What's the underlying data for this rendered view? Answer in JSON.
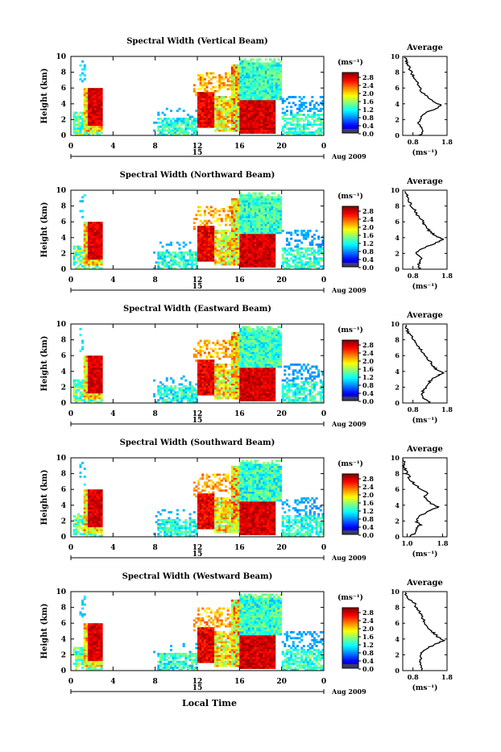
{
  "chart_data": [
    {
      "type": "heatmap",
      "title": "Spectral Width (Vertical Beam)",
      "ylabel": "Height (km)",
      "xlim": [
        0,
        24
      ],
      "ylim": [
        0,
        10
      ],
      "x_ticks": [
        "0",
        "4",
        "8",
        "12",
        "16",
        "20",
        "0"
      ],
      "y_ticks": [
        "0",
        "2",
        "4",
        "6",
        "8",
        "10"
      ],
      "day_label": "15",
      "date_label": "Aug 2009",
      "colorbar": {
        "unit": "(ms⁻¹)",
        "ticks": [
          "0.0",
          "0.4",
          "0.8",
          "1.2",
          "1.6",
          "2.0",
          "2.4",
          "2.8"
        ],
        "range": [
          0,
          3.0
        ]
      },
      "average": {
        "title": "Average",
        "xlim": [
          0.5,
          1.8
        ],
        "x_ticks": [
          "0.8",
          "1.8"
        ],
        "xlabel": "(ms⁻¹)",
        "y_ticks": [
          "0",
          "2",
          "4",
          "6",
          "8",
          "10"
        ],
        "profile": [
          [
            0,
            1.0
          ],
          [
            0.5,
            1.1
          ],
          [
            1,
            1.05
          ],
          [
            1.5,
            0.95
          ],
          [
            2,
            1.0
          ],
          [
            2.5,
            1.05
          ],
          [
            3,
            1.25
          ],
          [
            3.5,
            1.5
          ],
          [
            3.8,
            1.65
          ],
          [
            4.2,
            1.45
          ],
          [
            4.6,
            1.3
          ],
          [
            5,
            1.2
          ],
          [
            5.5,
            1.05
          ],
          [
            6,
            1.0
          ],
          [
            6.5,
            0.95
          ],
          [
            7,
            0.9
          ],
          [
            7.5,
            0.8
          ],
          [
            8,
            0.75
          ],
          [
            8.5,
            0.7
          ],
          [
            9,
            0.65
          ],
          [
            9.5,
            0.6
          ],
          [
            10,
            0.55
          ]
        ]
      }
    },
    {
      "type": "heatmap",
      "title": "Spectral Width (Northward Beam)",
      "ylabel": "Height (km)",
      "xlim": [
        0,
        24
      ],
      "ylim": [
        0,
        10
      ],
      "x_ticks": [
        "0",
        "4",
        "8",
        "12",
        "16",
        "20",
        "0"
      ],
      "y_ticks": [
        "0",
        "2",
        "4",
        "6",
        "8",
        "10"
      ],
      "day_label": "15",
      "date_label": "Aug 2009",
      "colorbar": {
        "unit": "(ms⁻¹)",
        "ticks": [
          "0.0",
          "0.4",
          "0.8",
          "1.2",
          "1.6",
          "2.0",
          "2.4",
          "2.8"
        ],
        "range": [
          0,
          3.0
        ]
      },
      "average": {
        "title": "Average",
        "xlim": [
          0.5,
          1.8
        ],
        "x_ticks": [
          "0.8",
          "1.8"
        ],
        "xlabel": "(ms⁻¹)",
        "y_ticks": [
          "0",
          "2",
          "4",
          "6",
          "8",
          "10"
        ],
        "profile": [
          [
            0,
            1.0
          ],
          [
            0.5,
            0.95
          ],
          [
            1,
            1.0
          ],
          [
            1.5,
            1.05
          ],
          [
            2,
            0.9
          ],
          [
            2.5,
            1.0
          ],
          [
            3,
            1.3
          ],
          [
            3.5,
            1.55
          ],
          [
            3.8,
            1.7
          ],
          [
            4.2,
            1.45
          ],
          [
            4.6,
            1.35
          ],
          [
            5,
            1.25
          ],
          [
            5.5,
            1.15
          ],
          [
            6,
            1.1
          ],
          [
            6.5,
            1.0
          ],
          [
            7,
            0.9
          ],
          [
            7.5,
            0.85
          ],
          [
            8,
            0.75
          ],
          [
            8.5,
            0.7
          ],
          [
            9,
            0.65
          ],
          [
            9.5,
            0.6
          ],
          [
            10,
            0.55
          ]
        ]
      }
    },
    {
      "type": "heatmap",
      "title": "Spectral Width (Eastward Beam)",
      "ylabel": "Height (km)",
      "xlim": [
        0,
        24
      ],
      "ylim": [
        0,
        10
      ],
      "x_ticks": [
        "0",
        "4",
        "8",
        "12",
        "16",
        "20",
        "0"
      ],
      "y_ticks": [
        "0",
        "2",
        "4",
        "6",
        "8",
        "10"
      ],
      "day_label": "15",
      "date_label": "Aug 2009",
      "colorbar": {
        "unit": "(ms⁻¹)",
        "ticks": [
          "0.0",
          "0.4",
          "0.8",
          "1.2",
          "1.6",
          "2.0",
          "2.4",
          "2.8"
        ],
        "range": [
          0,
          3.0
        ]
      },
      "average": {
        "title": "Average",
        "xlim": [
          0.5,
          1.8
        ],
        "x_ticks": [
          "0.8",
          "1.8"
        ],
        "xlabel": "(ms⁻¹)",
        "y_ticks": [
          "0",
          "2",
          "4",
          "6",
          "8",
          "10"
        ],
        "profile": [
          [
            0,
            1.3
          ],
          [
            0.5,
            1.15
          ],
          [
            1,
            1.05
          ],
          [
            1.5,
            1.1
          ],
          [
            2,
            1.2
          ],
          [
            2.5,
            1.25
          ],
          [
            3,
            1.35
          ],
          [
            3.5,
            1.55
          ],
          [
            3.8,
            1.7
          ],
          [
            4.2,
            1.5
          ],
          [
            4.6,
            1.4
          ],
          [
            5,
            1.35
          ],
          [
            5.5,
            1.25
          ],
          [
            6,
            1.15
          ],
          [
            6.5,
            1.05
          ],
          [
            7,
            1.0
          ],
          [
            7.5,
            0.9
          ],
          [
            8,
            0.8
          ],
          [
            8.5,
            0.75
          ],
          [
            9,
            0.65
          ],
          [
            9.5,
            0.6
          ],
          [
            10,
            0.55
          ]
        ]
      }
    },
    {
      "type": "heatmap",
      "title": "Spectral Width (Southward Beam)",
      "ylabel": "Height (km)",
      "xlim": [
        0,
        24
      ],
      "ylim": [
        0,
        10
      ],
      "x_ticks": [
        "0",
        "4",
        "8",
        "12",
        "16",
        "20",
        "0"
      ],
      "y_ticks": [
        "0",
        "2",
        "4",
        "6",
        "8",
        "10"
      ],
      "day_label": "15",
      "date_label": "Aug 2009",
      "colorbar": {
        "unit": "(ms⁻¹)",
        "ticks": [
          "0.0",
          "0.4",
          "0.8",
          "1.2",
          "1.6",
          "2.0",
          "2.4",
          "2.8"
        ],
        "range": [
          0,
          3.0
        ]
      },
      "average": {
        "title": "Average",
        "xlim": [
          0.9,
          1.9
        ],
        "x_ticks": [
          "1.0",
          "1.8"
        ],
        "xlabel": "(ms⁻¹)",
        "y_ticks": [
          "0",
          "2",
          "4",
          "6",
          "8",
          "10"
        ],
        "profile": [
          [
            0,
            1.1
          ],
          [
            0.5,
            1.15
          ],
          [
            1,
            1.2
          ],
          [
            1.5,
            1.3
          ],
          [
            2,
            1.2
          ],
          [
            2.5,
            1.25
          ],
          [
            3,
            1.4
          ],
          [
            3.5,
            1.55
          ],
          [
            3.8,
            1.7
          ],
          [
            4.2,
            1.55
          ],
          [
            4.6,
            1.45
          ],
          [
            5,
            1.4
          ],
          [
            5.5,
            1.45
          ],
          [
            6,
            1.35
          ],
          [
            6.5,
            1.2
          ],
          [
            7,
            1.1
          ],
          [
            7.5,
            1.05
          ],
          [
            8,
            1.0
          ],
          [
            8.5,
            0.95
          ],
          [
            9,
            0.93
          ],
          [
            9.5,
            0.92
          ],
          [
            10,
            0.9
          ]
        ]
      }
    },
    {
      "type": "heatmap",
      "title": "Spectral Width (Westward Beam)",
      "ylabel": "Height (km)",
      "xlim": [
        0,
        24
      ],
      "ylim": [
        0,
        10
      ],
      "x_ticks": [
        "0",
        "4",
        "8",
        "12",
        "16",
        "20",
        "0"
      ],
      "y_ticks": [
        "0",
        "2",
        "4",
        "6",
        "8",
        "10"
      ],
      "day_label": "15",
      "date_label": "Aug 2009",
      "xlabel": "Local Time",
      "colorbar": {
        "unit": "(ms⁻¹)",
        "ticks": [
          "0.0",
          "0.4",
          "0.8",
          "1.2",
          "1.6",
          "2.0",
          "2.4",
          "2.8"
        ],
        "range": [
          0,
          3.0
        ]
      },
      "average": {
        "title": "Average",
        "xlim": [
          0.5,
          1.8
        ],
        "x_ticks": [
          "0.8",
          "1.8"
        ],
        "xlabel": "(ms⁻¹)",
        "y_ticks": [
          "0",
          "2",
          "4",
          "6",
          "8",
          "10"
        ],
        "profile": [
          [
            0,
            1.1
          ],
          [
            0.5,
            1.05
          ],
          [
            1,
            1.0
          ],
          [
            1.5,
            1.05
          ],
          [
            2,
            1.0
          ],
          [
            2.5,
            1.1
          ],
          [
            3,
            1.3
          ],
          [
            3.5,
            1.55
          ],
          [
            3.8,
            1.7
          ],
          [
            4.2,
            1.55
          ],
          [
            4.6,
            1.45
          ],
          [
            5,
            1.35
          ],
          [
            5.5,
            1.25
          ],
          [
            6,
            1.15
          ],
          [
            6.5,
            1.1
          ],
          [
            7,
            1.05
          ],
          [
            7.5,
            1.0
          ],
          [
            8,
            0.9
          ],
          [
            8.5,
            0.85
          ],
          [
            9,
            0.7
          ],
          [
            9.5,
            0.6
          ],
          [
            10,
            0.55
          ]
        ]
      }
    }
  ],
  "bottom_xlabel": "Local Time"
}
